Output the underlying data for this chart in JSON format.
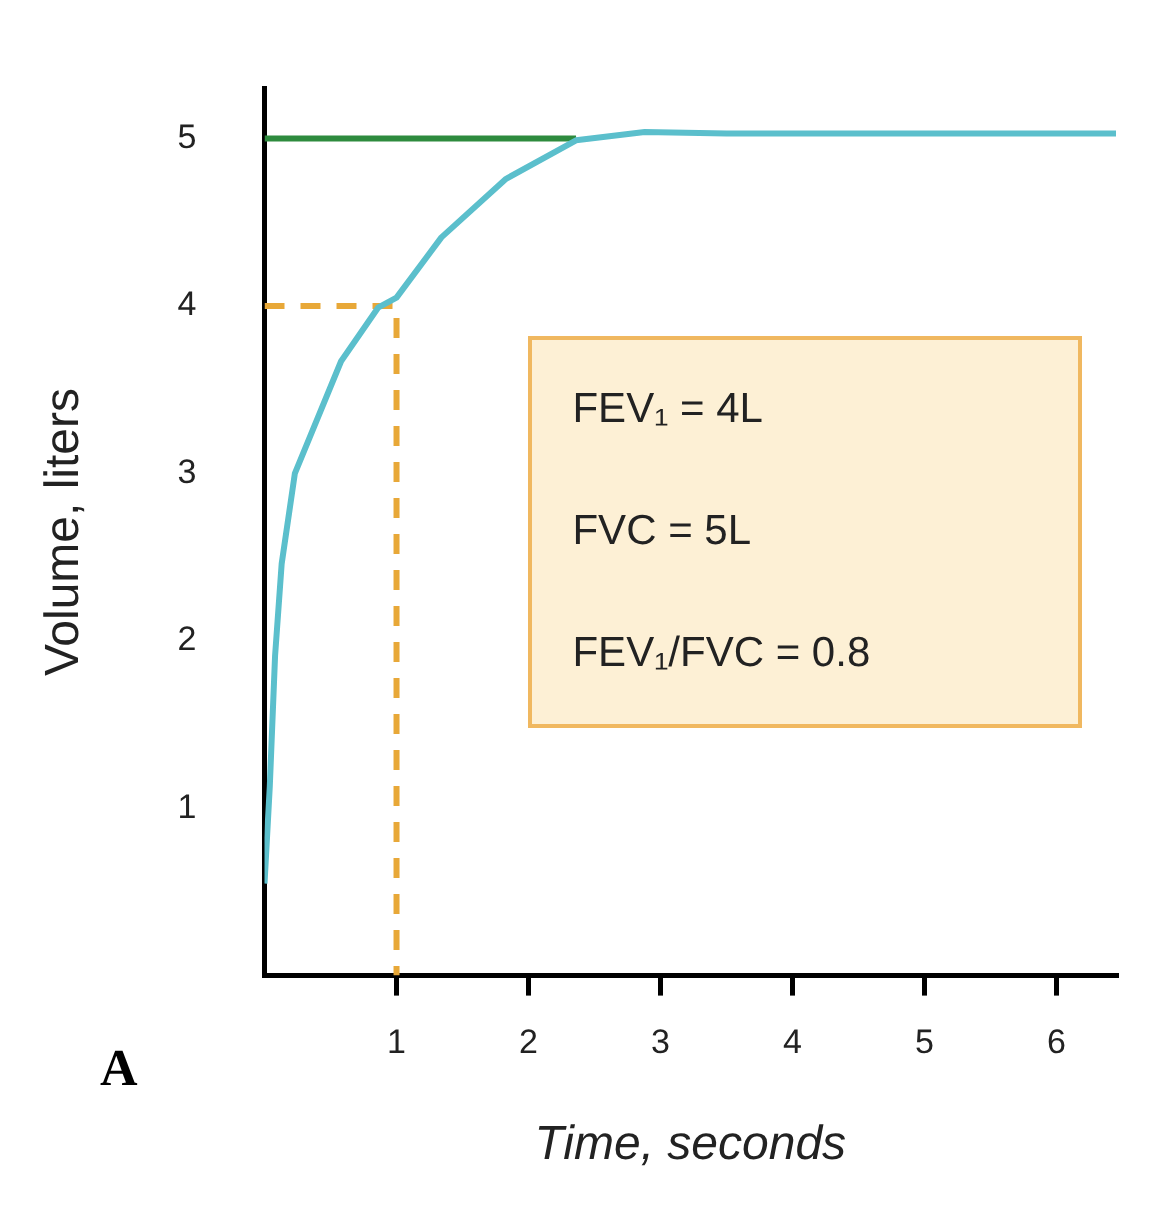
{
  "chart_data": {
    "type": "line",
    "xlabel": "Time, seconds",
    "ylabel": "Volume, liters",
    "xlim": [
      0,
      6.45
    ],
    "ylim": [
      0,
      5.3
    ],
    "xticks": [
      1,
      2,
      3,
      4,
      5,
      6
    ],
    "yticks": [
      1,
      2,
      3,
      4,
      5
    ],
    "marker": "none",
    "series": [
      {
        "color": "#5bbfcc",
        "line_style": "solid",
        "x": [
          0,
          0.04,
          0.08,
          0.13,
          0.23,
          0.58,
          0.86,
          1.0,
          1.34,
          1.83,
          2.36,
          2.88,
          3.5,
          4.5,
          5.5,
          6.45
        ],
        "values": [
          0.55,
          1.13,
          1.91,
          2.46,
          3.0,
          3.67,
          3.99,
          4.05,
          4.41,
          4.76,
          4.99,
          5.04,
          5.03,
          5.03,
          5.03,
          5.03
        ]
      },
      {
        "color": "#2e8b3e",
        "line_style": "solid",
        "x": [
          0,
          2.36
        ],
        "values": [
          5,
          5
        ]
      },
      {
        "color": "#e8a838",
        "line_style": "dashed",
        "x": [
          0,
          1,
          1
        ],
        "values": [
          4,
          4,
          0
        ]
      }
    ],
    "annotations": [
      "FEV₁ = 4L",
      "FVC = 5L",
      "FEV₁/FVC = 0.8",
      "A"
    ]
  }
}
